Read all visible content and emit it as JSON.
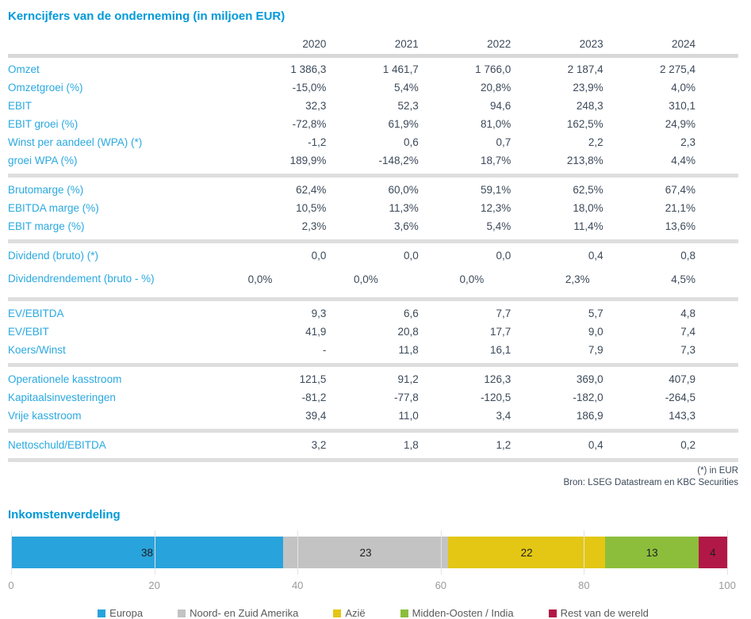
{
  "table": {
    "title": "Kerncijfers van de onderneming (in miljoen EUR)",
    "years": [
      "2020",
      "2021",
      "2022",
      "2023",
      "2024"
    ],
    "sections": [
      {
        "rows": [
          {
            "label": "Omzet",
            "values": [
              "1 386,3",
              "1 461,7",
              "1 766,0",
              "2 187,4",
              "2 275,4"
            ]
          },
          {
            "label": "Omzetgroei (%)",
            "values": [
              "-15,0%",
              "5,4%",
              "20,8%",
              "23,9%",
              "4,0%"
            ]
          },
          {
            "label": "EBIT",
            "values": [
              "32,3",
              "52,3",
              "94,6",
              "248,3",
              "310,1"
            ]
          },
          {
            "label": "EBIT groei (%)",
            "values": [
              "-72,8%",
              "61,9%",
              "81,0%",
              "162,5%",
              "24,9%"
            ]
          },
          {
            "label": "Winst per aandeel (WPA) (*)",
            "values": [
              "-1,2",
              "0,6",
              "0,7",
              "2,2",
              "2,3"
            ]
          },
          {
            "label": "groei WPA (%)",
            "values": [
              "189,9%",
              "-148,2%",
              "18,7%",
              "213,8%",
              "4,4%"
            ]
          }
        ]
      },
      {
        "rows": [
          {
            "label": "Brutomarge (%)",
            "values": [
              "62,4%",
              "60,0%",
              "59,1%",
              "62,5%",
              "67,4%"
            ]
          },
          {
            "label": "EBITDA marge (%)",
            "values": [
              "10,5%",
              "11,3%",
              "12,3%",
              "18,0%",
              "21,1%"
            ]
          },
          {
            "label": "EBIT marge (%)",
            "values": [
              "2,3%",
              "3,6%",
              "5,4%",
              "11,4%",
              "13,6%"
            ]
          }
        ]
      },
      {
        "rows": [
          {
            "label": "Dividend (bruto) (*)",
            "values": [
              "0,0",
              "0,0",
              "0,0",
              "0,4",
              "0,8"
            ]
          },
          {
            "label": "Dividendrendement (bruto - %)",
            "wrap": true,
            "values": [
              "0,0%",
              "0,0%",
              "0,0%",
              "2,3%",
              "4,5%"
            ]
          }
        ]
      },
      {
        "rows": [
          {
            "label": "EV/EBITDA",
            "values": [
              "9,3",
              "6,6",
              "7,7",
              "5,7",
              "4,8"
            ]
          },
          {
            "label": "EV/EBIT",
            "values": [
              "41,9",
              "20,8",
              "17,7",
              "9,0",
              "7,4"
            ]
          },
          {
            "label": "Koers/Winst",
            "values": [
              "-",
              "11,8",
              "16,1",
              "7,9",
              "7,3"
            ]
          }
        ]
      },
      {
        "rows": [
          {
            "label": "Operationele kasstroom",
            "values": [
              "121,5",
              "91,2",
              "126,3",
              "369,0",
              "407,9"
            ]
          },
          {
            "label": "Kapitaalsinvesteringen",
            "values": [
              "-81,2",
              "-77,8",
              "-120,5",
              "-182,0",
              "-264,5"
            ]
          },
          {
            "label": "Vrije kasstroom",
            "values": [
              "39,4",
              "11,0",
              "3,4",
              "186,9",
              "143,3"
            ]
          }
        ]
      },
      {
        "rows": [
          {
            "label": "Nettoschuld/EBITDA",
            "values": [
              "3,2",
              "1,8",
              "1,2",
              "0,4",
              "0,2"
            ]
          }
        ]
      }
    ],
    "footnote": "(*) in EUR",
    "source": "Bron: LSEG Datastream en KBC Securities"
  },
  "chart": {
    "title": "Inkomstenverdeling"
  },
  "chart_data": {
    "type": "bar",
    "stacked": true,
    "orientation": "horizontal",
    "title": "Inkomstenverdeling",
    "series": [
      {
        "name": "Europa",
        "value": 38,
        "color": "#29A3DC"
      },
      {
        "name": "Noord- en Zuid Amerika",
        "value": 23,
        "color": "#C3C3C3"
      },
      {
        "name": "Azië",
        "value": 22,
        "color": "#E3C714"
      },
      {
        "name": "Midden-Oosten / India",
        "value": 13,
        "color": "#8CBE3C"
      },
      {
        "name": "Rest van de wereld",
        "value": 4,
        "color": "#B21847"
      }
    ],
    "xticks": [
      0,
      20,
      40,
      60,
      80,
      100
    ],
    "xlim": [
      0,
      100
    ],
    "grid": true,
    "legend_position": "bottom"
  },
  "colors": {
    "accent_blue": "#0099D8",
    "row_label_blue": "#2AA9E0",
    "value_text": "#3C4A5A",
    "separator": "#DEDEDE",
    "gridline": "#E3E3E3",
    "axis_label": "#9A9A9A",
    "legend_text": "#595959"
  }
}
